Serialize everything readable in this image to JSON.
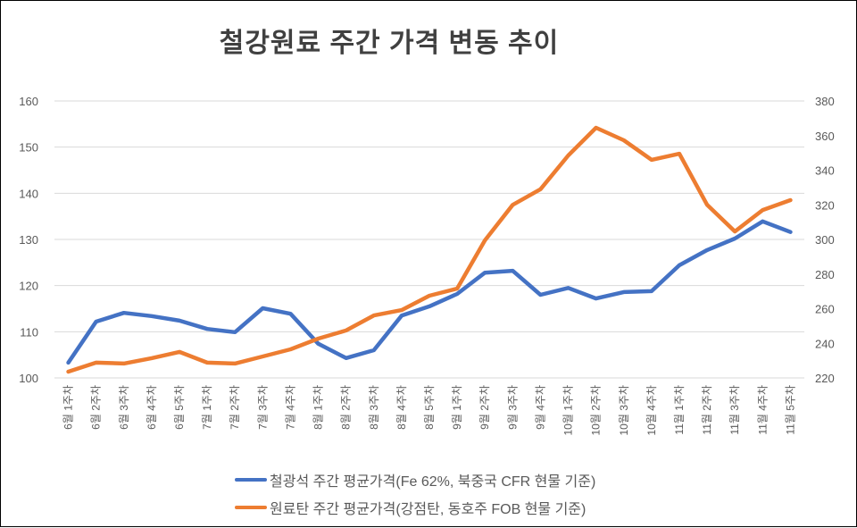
{
  "chart_data": {
    "type": "line",
    "title": "철강원료 주간 가격 변동 추이",
    "categories": [
      "6월 1주차",
      "6월 2주차",
      "6월 3주차",
      "6월 4주차",
      "6월 5주차",
      "7월 1주차",
      "7월 2주차",
      "7월 3주차",
      "7월 4주차",
      "8월 1주차",
      "8월 2주차",
      "8월 3주차",
      "8월 4주차",
      "8월 5주차",
      "9월 1주차",
      "9월 2주차",
      "9월 3주차",
      "9월 4주차",
      "10월 1주차",
      "10월 2주차",
      "10월 3주차",
      "10월 4주차",
      "11월 1주차",
      "11월 2주차",
      "11월 3주차",
      "11월 4주차",
      "11월 5주차"
    ],
    "series": [
      {
        "name": "철광석 주간 평균가격(Fe 62%, 북중국 CFR 현물 기준)",
        "axis": "left",
        "color": "#4472C4",
        "values": [
          103.3,
          112.2,
          114.1,
          113.4,
          112.4,
          110.6,
          109.9,
          115.1,
          113.9,
          107.4,
          104.3,
          106.0,
          113.5,
          115.5,
          118.2,
          122.8,
          123.2,
          118.0,
          119.5,
          117.2,
          118.6,
          118.8,
          124.4,
          127.7,
          130.2,
          133.9,
          131.6
        ]
      },
      {
        "name": "원료탄 주간 평균가격(강점탄, 동호주 FOB 현물 기준)",
        "axis": "right",
        "color": "#ED7D31",
        "values": [
          223.6,
          228.8,
          228.3,
          231.4,
          235.0,
          228.8,
          228.3,
          232.4,
          236.5,
          242.7,
          247.4,
          256.1,
          259.2,
          267.5,
          271.6,
          299.5,
          320.0,
          329.0,
          348.5,
          364.5,
          357.3,
          346.0,
          349.5,
          320.0,
          304.6,
          317.0,
          322.7
        ]
      }
    ],
    "y_left": {
      "range": [
        100,
        160
      ],
      "ticks": [
        "100",
        "110",
        "120",
        "130",
        "140",
        "150",
        "160"
      ]
    },
    "y_right": {
      "range": [
        220,
        380
      ],
      "ticks": [
        "220",
        "240",
        "260",
        "280",
        "300",
        "320",
        "340",
        "360",
        "380"
      ]
    },
    "grid": true,
    "legend_position": "bottom"
  }
}
